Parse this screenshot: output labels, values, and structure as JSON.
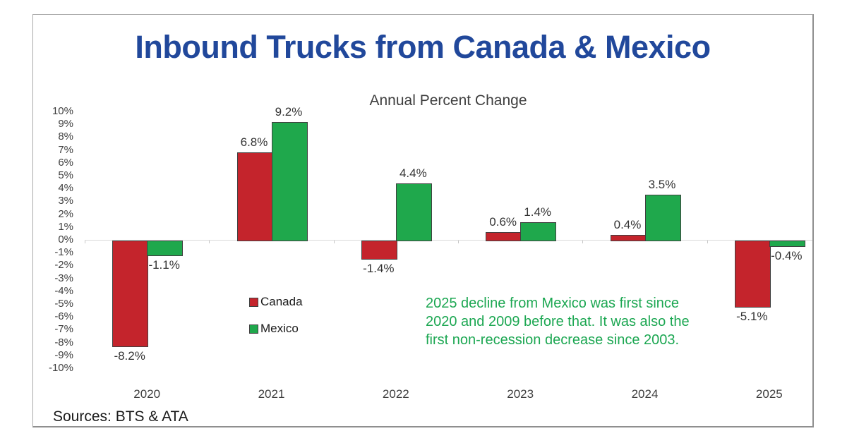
{
  "title": "Inbound Trucks from Canada & Mexico",
  "subtitle": "Annual Percent Change",
  "source_note": "Sources: BTS & ATA",
  "annotation": {
    "lines": [
      "2025 decline from Mexico was first since",
      "2020 and 2009 before that. It was also the",
      "first non-recession decrease since 2003."
    ],
    "color": "#1CA752"
  },
  "legend": [
    {
      "label": "Canada",
      "color": "#C4242C"
    },
    {
      "label": "Mexico",
      "color": "#1FA84C"
    }
  ],
  "colors": {
    "title": "#21489B",
    "axis_text": "#3F3F3F",
    "bar_border": "#404040",
    "zero_line": "#D9D9D9"
  },
  "chart_data": {
    "type": "bar",
    "title": "Inbound Trucks from Canada & Mexico",
    "subtitle": "Annual Percent Change",
    "categories": [
      "2020",
      "2021",
      "2022",
      "2023",
      "2024",
      "2025"
    ],
    "series": [
      {
        "name": "Canada",
        "color": "#C4242C",
        "values": [
          -8.2,
          6.8,
          -1.4,
          0.6,
          0.4,
          -5.1
        ]
      },
      {
        "name": "Mexico",
        "color": "#1FA84C",
        "values": [
          -1.1,
          9.2,
          4.4,
          1.4,
          3.5,
          -0.4
        ]
      }
    ],
    "ylim": [
      -10,
      10
    ],
    "ytick_step": 1,
    "ytick_suffix": "%",
    "data_labels": true,
    "data_label_decimals": 1,
    "grid": false,
    "legend_position": "inside-bottom-left",
    "source": "Sources: BTS & ATA"
  }
}
